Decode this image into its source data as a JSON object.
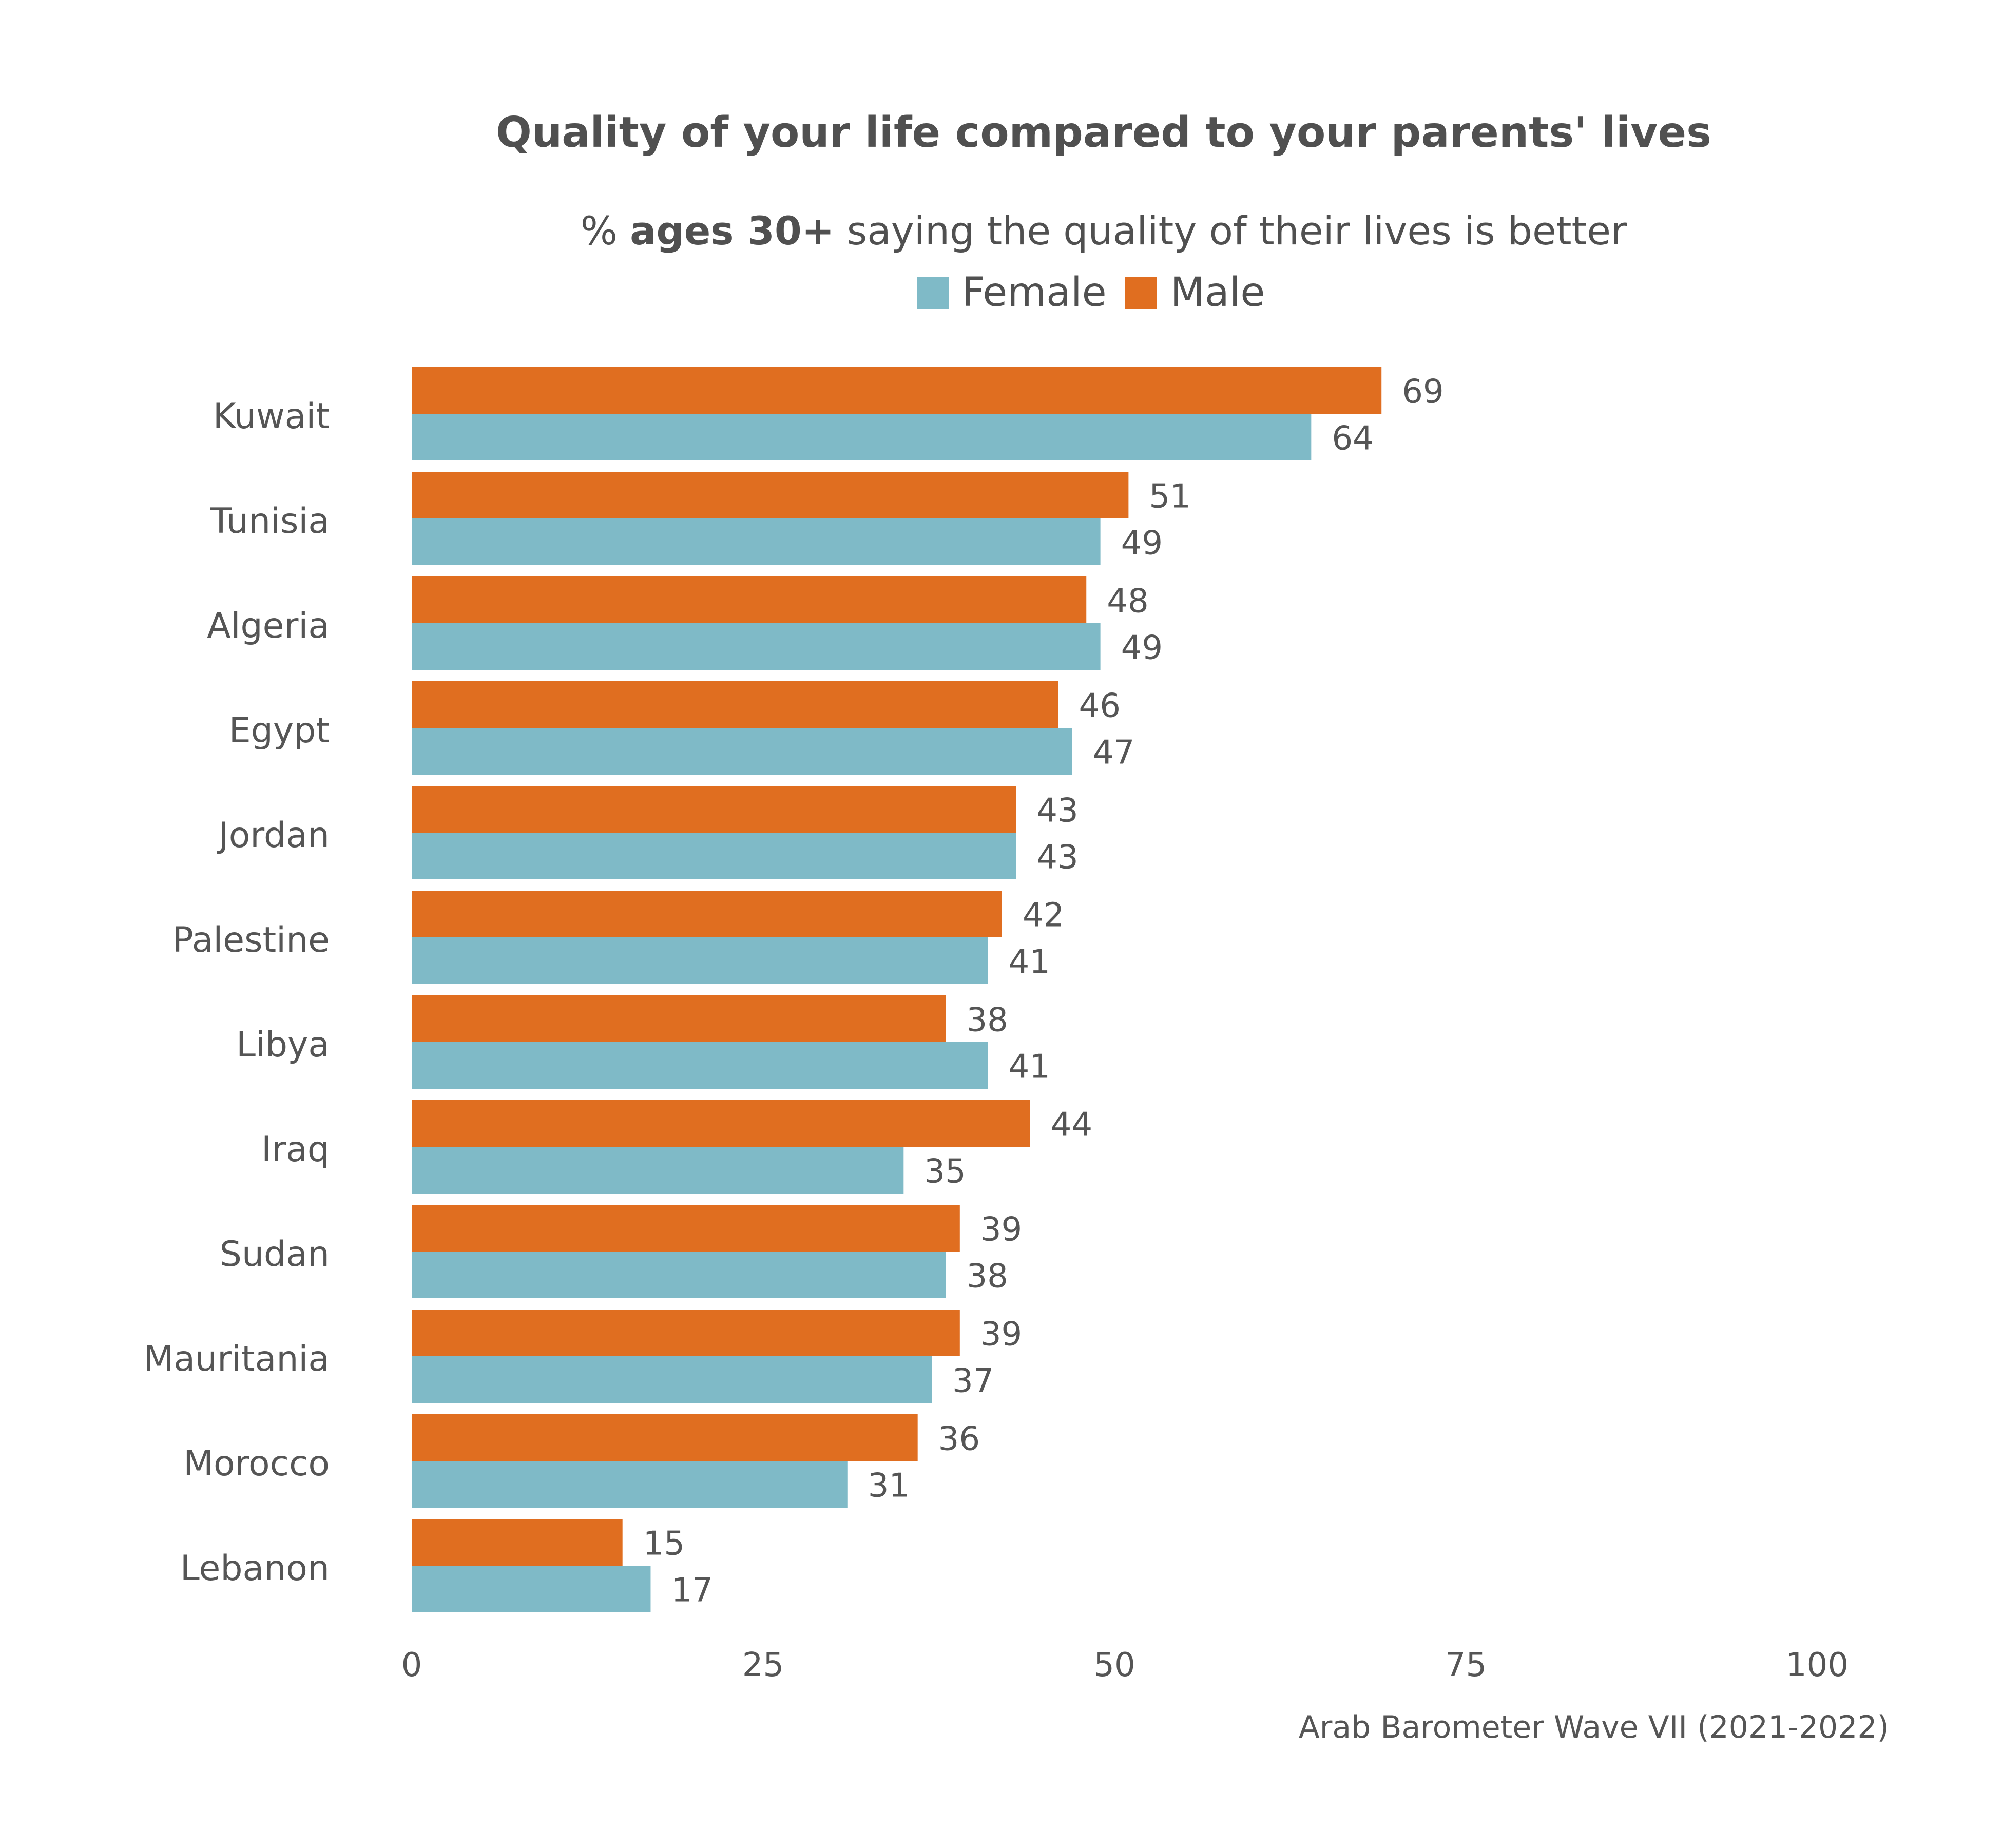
{
  "chart_data": {
    "type": "bar",
    "orientation": "horizontal",
    "title": "Quality of your life compared to your parents' lives",
    "subtitle": {
      "prefix": "% ",
      "bold": "ages 30+",
      "suffix": " saying the quality of their lives is better"
    },
    "categories": [
      "Kuwait",
      "Tunisia",
      "Algeria",
      "Egypt",
      "Jordan",
      "Palestine",
      "Libya",
      "Iraq",
      "Sudan",
      "Mauritania",
      "Morocco",
      "Lebanon"
    ],
    "series": [
      {
        "name": "Male",
        "color": "#E06E20",
        "values": [
          69,
          51,
          48,
          46,
          43,
          42,
          38,
          44,
          39,
          39,
          36,
          15
        ]
      },
      {
        "name": "Female",
        "color": "#7FBAC7",
        "values": [
          64,
          49,
          49,
          47,
          43,
          41,
          41,
          35,
          38,
          37,
          31,
          17
        ]
      }
    ],
    "legend": [
      "Female",
      "Male"
    ],
    "legend_position": "top",
    "xlim": [
      0,
      100
    ],
    "xticks": [
      "0",
      "25",
      "50",
      "75",
      "100"
    ],
    "grid": false,
    "source": "Arab Barometer Wave VII (2021-2022)"
  }
}
